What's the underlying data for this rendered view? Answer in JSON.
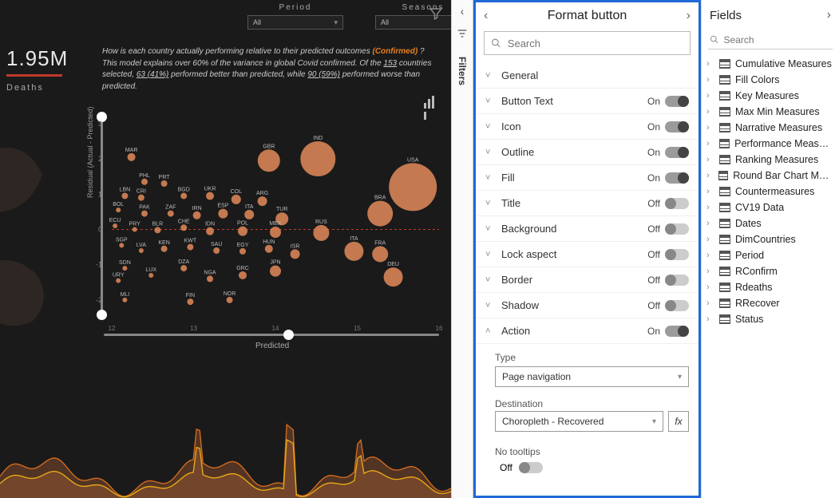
{
  "dashboard": {
    "background": "#1a1a1a",
    "dropdowns": {
      "period_label": "Period",
      "period_value": "All",
      "seasons_label": "Seasons",
      "seasons_value": "All"
    },
    "kpi": {
      "value": "1.95M",
      "bar_color": "#c0392b",
      "label": "Deaths"
    },
    "narrative": {
      "line1_pre": "How is each country actually performing relative to their predicted outcomes ",
      "line1_hl": "(Confirmed)",
      "line1_post": " ?",
      "line2_a": "This model explains over 60% of the variance in global Covid confirmed. Of the ",
      "line2_b": "153",
      "line2_c": " countries selected, ",
      "line2_d": "63 (41%)",
      "line2_e": " performed better than predicted, while ",
      "line2_f": "90 (59%)",
      "line2_g": " performed worse than predicted."
    },
    "chart": {
      "type": "bubble-scatter",
      "y_label": "Residual (Actual - Predicted)",
      "x_label": "Predicted",
      "y_ticks": [
        -2,
        -1,
        0,
        1,
        2,
        3
      ],
      "x_ticks": [
        12,
        13,
        14,
        15,
        16
      ],
      "bubble_fill": "#e38b5a",
      "zero_line_color": "#c0392b",
      "grid_color": "#333333",
      "points": [
        {
          "x": 0.06,
          "y": 2.05,
          "r": 5,
          "l": "MAR"
        },
        {
          "x": 0.1,
          "y": 1.35,
          "r": 4,
          "l": "PHL"
        },
        {
          "x": 0.16,
          "y": 1.3,
          "r": 4,
          "l": "PRT"
        },
        {
          "x": 0.48,
          "y": 1.95,
          "r": 14,
          "l": "GBR"
        },
        {
          "x": 0.63,
          "y": 2.0,
          "r": 22,
          "l": "IND"
        },
        {
          "x": 0.92,
          "y": 1.2,
          "r": 30,
          "l": "USA"
        },
        {
          "x": 0.82,
          "y": 0.45,
          "r": 16,
          "l": "BRA"
        },
        {
          "x": 0.04,
          "y": 0.95,
          "r": 4,
          "l": "LBN"
        },
        {
          "x": 0.09,
          "y": 0.9,
          "r": 4,
          "l": "CRI"
        },
        {
          "x": 0.22,
          "y": 0.95,
          "r": 4,
          "l": "BGD"
        },
        {
          "x": 0.3,
          "y": 0.95,
          "r": 5,
          "l": "UKR"
        },
        {
          "x": 0.38,
          "y": 0.85,
          "r": 6,
          "l": "COL"
        },
        {
          "x": 0.46,
          "y": 0.8,
          "r": 6,
          "l": "ARG"
        },
        {
          "x": 0.02,
          "y": 0.55,
          "r": 3,
          "l": "BOL"
        },
        {
          "x": 0.1,
          "y": 0.45,
          "r": 4,
          "l": "PAK"
        },
        {
          "x": 0.18,
          "y": 0.45,
          "r": 4,
          "l": "ZAF"
        },
        {
          "x": 0.26,
          "y": 0.4,
          "r": 5,
          "l": "IRN"
        },
        {
          "x": 0.34,
          "y": 0.45,
          "r": 6,
          "l": "ESP"
        },
        {
          "x": 0.42,
          "y": 0.42,
          "r": 6,
          "l": "ITA"
        },
        {
          "x": 0.52,
          "y": 0.3,
          "r": 8,
          "l": "TUR"
        },
        {
          "x": 0.01,
          "y": 0.1,
          "r": 3,
          "l": "ECU"
        },
        {
          "x": 0.07,
          "y": 0.0,
          "r": 3,
          "l": "PRY"
        },
        {
          "x": 0.14,
          "y": -0.02,
          "r": 4,
          "l": "BLR"
        },
        {
          "x": 0.22,
          "y": 0.05,
          "r": 4,
          "l": "CHE"
        },
        {
          "x": 0.3,
          "y": -0.05,
          "r": 5,
          "l": "IDN"
        },
        {
          "x": 0.4,
          "y": -0.05,
          "r": 6,
          "l": "POL"
        },
        {
          "x": 0.5,
          "y": -0.08,
          "r": 7,
          "l": "MEX"
        },
        {
          "x": 0.64,
          "y": -0.1,
          "r": 10,
          "l": "RUS"
        },
        {
          "x": 0.03,
          "y": -0.45,
          "r": 3,
          "l": "SGP"
        },
        {
          "x": 0.09,
          "y": -0.6,
          "r": 3,
          "l": "LVA"
        },
        {
          "x": 0.16,
          "y": -0.55,
          "r": 4,
          "l": "KEN"
        },
        {
          "x": 0.24,
          "y": -0.5,
          "r": 4,
          "l": "KWT"
        },
        {
          "x": 0.32,
          "y": -0.6,
          "r": 4,
          "l": "SAU"
        },
        {
          "x": 0.4,
          "y": -0.62,
          "r": 4,
          "l": "EGY"
        },
        {
          "x": 0.48,
          "y": -0.55,
          "r": 5,
          "l": "HUN"
        },
        {
          "x": 0.56,
          "y": -0.7,
          "r": 6,
          "l": "ISR"
        },
        {
          "x": 0.74,
          "y": -0.62,
          "r": 12,
          "l": "ITA"
        },
        {
          "x": 0.82,
          "y": -0.7,
          "r": 10,
          "l": "FRA"
        },
        {
          "x": 0.04,
          "y": -1.1,
          "r": 3,
          "l": "SDN"
        },
        {
          "x": 0.02,
          "y": -1.45,
          "r": 3,
          "l": "URY"
        },
        {
          "x": 0.12,
          "y": -1.3,
          "r": 3,
          "l": "LUX"
        },
        {
          "x": 0.22,
          "y": -1.1,
          "r": 4,
          "l": "DZA"
        },
        {
          "x": 0.3,
          "y": -1.4,
          "r": 4,
          "l": "NGA"
        },
        {
          "x": 0.4,
          "y": -1.3,
          "r": 5,
          "l": "GRC"
        },
        {
          "x": 0.5,
          "y": -1.18,
          "r": 7,
          "l": "JPN"
        },
        {
          "x": 0.86,
          "y": -1.35,
          "r": 12,
          "l": "DEU"
        },
        {
          "x": 0.24,
          "y": -2.05,
          "r": 4,
          "l": "FIN"
        },
        {
          "x": 0.36,
          "y": -2.0,
          "r": 4,
          "l": "NOR"
        },
        {
          "x": 0.04,
          "y": -2.0,
          "r": 3,
          "l": "MLI"
        }
      ]
    },
    "slider_x_knob": 0.55,
    "slider_y_top": 0.02,
    "slider_y_bot": 0.98,
    "spark": {
      "fill1": "#6b4029",
      "fill2": "#8a512f",
      "line1": "#d2691e",
      "line2": "#e6a817"
    }
  },
  "rail": {
    "label": "Filters"
  },
  "format": {
    "title": "Format button",
    "search_placeholder": "Search",
    "sections": [
      {
        "label": "General",
        "ctrl": "none",
        "expanded": false
      },
      {
        "label": "Button Text",
        "ctrl": "toggle",
        "on": true
      },
      {
        "label": "Icon",
        "ctrl": "toggle",
        "on": true
      },
      {
        "label": "Outline",
        "ctrl": "toggle",
        "on": true
      },
      {
        "label": "Fill",
        "ctrl": "toggle",
        "on": true
      },
      {
        "label": "Title",
        "ctrl": "toggle",
        "on": false
      },
      {
        "label": "Background",
        "ctrl": "toggle",
        "on": false
      },
      {
        "label": "Lock aspect",
        "ctrl": "toggle",
        "on": false
      },
      {
        "label": "Border",
        "ctrl": "toggle",
        "on": false
      },
      {
        "label": "Shadow",
        "ctrl": "toggle",
        "on": false
      },
      {
        "label": "Action",
        "ctrl": "toggle",
        "on": true,
        "expanded": true
      }
    ],
    "action": {
      "type_label": "Type",
      "type_value": "Page navigation",
      "dest_label": "Destination",
      "dest_value": "Choropleth - Recovered",
      "fx_label": "fx",
      "tooltip_label": "No tooltips",
      "tooltip_state_label": "Off",
      "tooltip_on": false
    },
    "on_label": "On",
    "off_label": "Off"
  },
  "fields": {
    "title": "Fields",
    "search_placeholder": "Search",
    "tables": [
      "Cumulative Measures",
      "Fill Colors",
      "Key Measures",
      "Max Min Measures",
      "Narrative Measures",
      "Performance Measures",
      "Ranking Measures",
      "Round Bar Chart Measu...",
      "Countermeasures",
      "CV19 Data",
      "Dates",
      "DimCountries",
      "Period",
      "RConfirm",
      "Rdeaths",
      "RRecover",
      "Status"
    ]
  }
}
